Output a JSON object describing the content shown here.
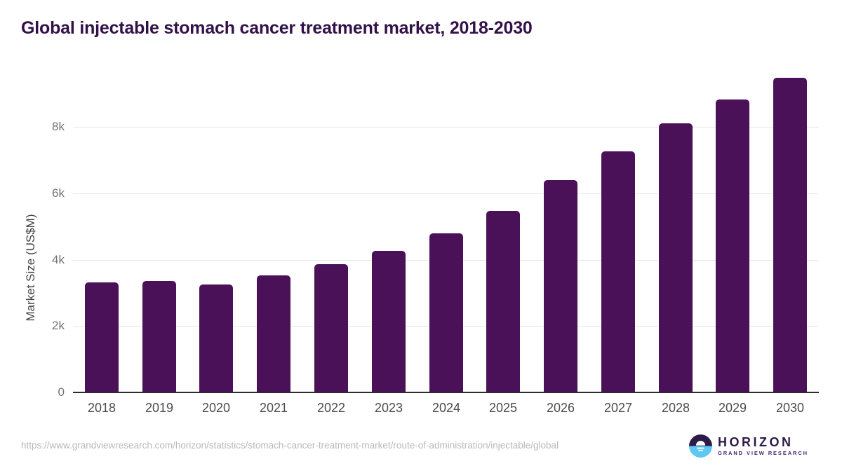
{
  "header": {
    "title": "Global injectable stomach cancer treatment market, 2018-2030"
  },
  "chart_data": {
    "type": "bar",
    "title": "Global injectable stomach cancer treatment market, 2018-2030",
    "categories": [
      "2018",
      "2019",
      "2020",
      "2021",
      "2022",
      "2023",
      "2024",
      "2025",
      "2026",
      "2027",
      "2028",
      "2029",
      "2030"
    ],
    "values": [
      3310,
      3350,
      3260,
      3520,
      3860,
      4260,
      4790,
      5470,
      6400,
      7260,
      8100,
      8820,
      9480
    ],
    "xlabel": "",
    "ylabel": "Market Size (US$M)",
    "ylim": [
      0,
      10000
    ],
    "yticks": {
      "labels": [
        "0",
        "2k",
        "4k",
        "6k",
        "8k"
      ],
      "values": [
        0,
        2000,
        4000,
        6000,
        8000
      ]
    },
    "grid": "horizontal",
    "legend": "none",
    "bar_color": "#4a1158"
  },
  "footer": {
    "source_url": "https://www.grandviewresearch.com/horizon/statistics/stomach-cancer-treatment-market/route-of-administration/injectable/global",
    "logo": {
      "name": "HORIZON",
      "subtitle": "GRAND VIEW RESEARCH",
      "icon_top_color": "#2e1a47",
      "icon_bottom_color": "#5ec7f2"
    }
  },
  "colors": {
    "title_text": "#321149",
    "bar": "#4a1158",
    "axis_line": "#2b2b2b",
    "gridline": "#e7e7e7",
    "tick_text": "#737373",
    "x_tick_text": "#4c4c4c",
    "footer_text": "#b9b9b9",
    "background": "#ffffff"
  }
}
